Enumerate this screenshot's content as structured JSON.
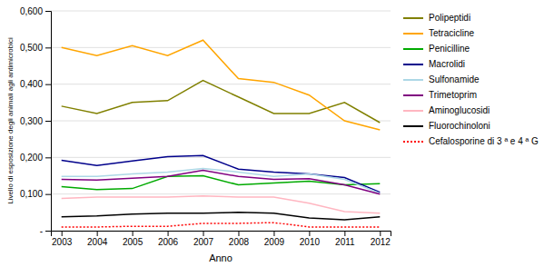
{
  "chart_data": {
    "type": "line",
    "xlabel": "Anno",
    "ylabel": "Livello di esposizione degli animali agli antimicrobici",
    "x": [
      2003,
      2004,
      2005,
      2006,
      2007,
      2008,
      2009,
      2010,
      2011,
      2012
    ],
    "xlim": [
      2002.7,
      2012.3
    ],
    "xticks": [
      2003,
      2004,
      2005,
      2006,
      2007,
      2008,
      2009,
      2010,
      2011,
      2012
    ],
    "ylim": [
      0,
      0.6
    ],
    "yticks": [
      {
        "value": 0.0,
        "label": "-"
      },
      {
        "value": 0.1,
        "label": "0,100"
      },
      {
        "value": 0.2,
        "label": "0,200"
      },
      {
        "value": 0.3,
        "label": "0,300"
      },
      {
        "value": 0.4,
        "label": "0,400"
      },
      {
        "value": 0.5,
        "label": "0,500"
      },
      {
        "value": 0.6,
        "label": "0,600"
      }
    ],
    "grid": true,
    "legend": "right",
    "series": [
      {
        "name": "Polipeptidi",
        "color": "#808000",
        "line_style": "solid",
        "values": [
          0.34,
          0.32,
          0.35,
          0.355,
          0.41,
          0.365,
          0.32,
          0.32,
          0.35,
          0.295
        ]
      },
      {
        "name": "Tetracicline",
        "color": "#FFA500",
        "line_style": "solid",
        "values": [
          0.5,
          0.478,
          0.505,
          0.478,
          0.52,
          0.415,
          0.405,
          0.37,
          0.3,
          0.275
        ]
      },
      {
        "name": "Penicilline",
        "color": "#00AA00",
        "line_style": "solid",
        "values": [
          0.12,
          0.112,
          0.115,
          0.148,
          0.15,
          0.125,
          0.13,
          0.135,
          0.125,
          0.128
        ]
      },
      {
        "name": "Macrolidi",
        "color": "#00008B",
        "line_style": "solid",
        "values": [
          0.192,
          0.178,
          0.19,
          0.202,
          0.205,
          0.168,
          0.16,
          0.155,
          0.145,
          0.105
        ]
      },
      {
        "name": "Sulfonamide",
        "color": "#ADD8E6",
        "line_style": "solid",
        "values": [
          0.148,
          0.148,
          0.155,
          0.16,
          0.17,
          0.16,
          0.148,
          0.155,
          0.14,
          0.102
        ]
      },
      {
        "name": "Trimetoprim",
        "color": "#800080",
        "line_style": "solid",
        "values": [
          0.14,
          0.138,
          0.143,
          0.148,
          0.165,
          0.148,
          0.14,
          0.142,
          0.125,
          0.1
        ]
      },
      {
        "name": "Aminoglucosidi",
        "color": "#FFB6C1",
        "line_style": "solid",
        "values": [
          0.088,
          0.092,
          0.092,
          0.092,
          0.095,
          0.092,
          0.092,
          0.075,
          0.052,
          0.048
        ]
      },
      {
        "name": "Fluorochinoloni",
        "color": "#000000",
        "line_style": "solid",
        "values": [
          0.038,
          0.04,
          0.045,
          0.048,
          0.048,
          0.05,
          0.048,
          0.035,
          0.03,
          0.038
        ]
      },
      {
        "name": "Cefalosporine di 3 ª e 4 ª G",
        "color": "#FF0000",
        "line_style": "dotted",
        "values": [
          0.01,
          0.01,
          0.012,
          0.012,
          0.02,
          0.02,
          0.022,
          0.01,
          0.01,
          0.01
        ]
      }
    ]
  }
}
